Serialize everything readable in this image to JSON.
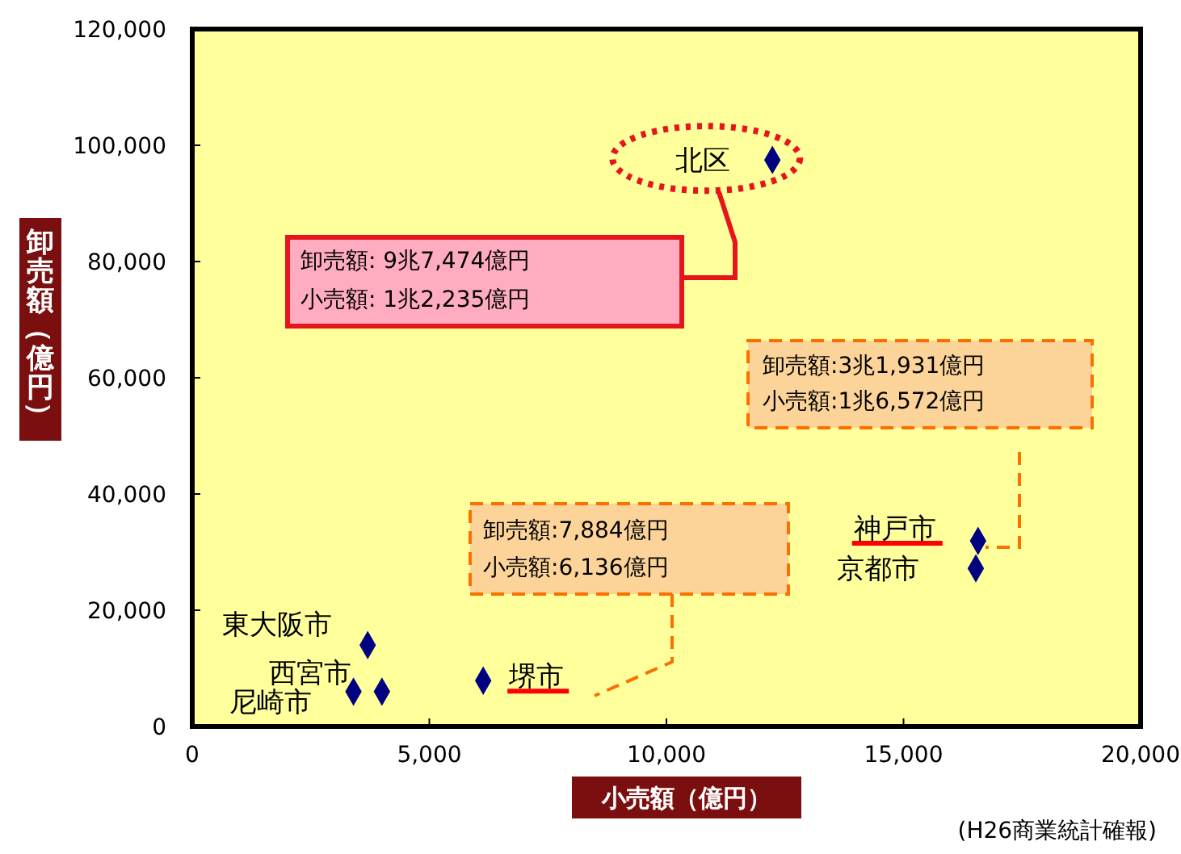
{
  "chart_data": {
    "type": "scatter",
    "xlabel": "小売額（億円）",
    "ylabel": "卸売額（億円）",
    "x": [
      12235,
      16572,
      16525,
      6136,
      3700,
      4000,
      3400
    ],
    "values": [
      97474,
      31931,
      27200,
      7884,
      14000,
      6000,
      6000
    ],
    "color": "#000080",
    "marker": "diamond",
    "grid": false,
    "xlim": [
      0,
      20000
    ],
    "ylim": [
      0,
      120000
    ],
    "xticks": [
      {
        "value": 0,
        "label": "0"
      },
      {
        "value": 5000,
        "label": "5,000"
      },
      {
        "value": 10000,
        "label": "10,000"
      },
      {
        "value": 15000,
        "label": "15,000"
      },
      {
        "value": 20000,
        "label": "20,000"
      }
    ],
    "yticks": [
      {
        "value": 0,
        "label": "0"
      },
      {
        "value": 20000,
        "label": "20,000"
      },
      {
        "value": 40000,
        "label": "40,000"
      },
      {
        "value": 60000,
        "label": "60,000"
      },
      {
        "value": 80000,
        "label": "80,000"
      },
      {
        "value": 100000,
        "label": "100,000"
      },
      {
        "value": 120000,
        "label": "120,000"
      }
    ],
    "annotations": [
      {
        "text": "北区",
        "x": 12235,
        "y": 97474
      },
      "卸売額: 9兆7,474億円",
      "小売額: 1兆2,235億円",
      {
        "text": "神戸市",
        "x": 16572,
        "y": 31931
      },
      "卸売額:3兆1,931億円",
      "小売額:1兆6,572億円",
      {
        "text": "京都市",
        "x": 16525,
        "y": 27200
      },
      {
        "text": "堺市",
        "x": 6136,
        "y": 7884
      },
      "卸売額:7,884億円",
      "小売額:6,136億円",
      {
        "text": "東大阪市",
        "x": 3700,
        "y": 14000
      },
      {
        "text": "西宮市",
        "x": 4000,
        "y": 6000
      },
      {
        "text": "尼崎市",
        "x": 3400,
        "y": 6000
      },
      "(H26商業統計確報)"
    ]
  }
}
